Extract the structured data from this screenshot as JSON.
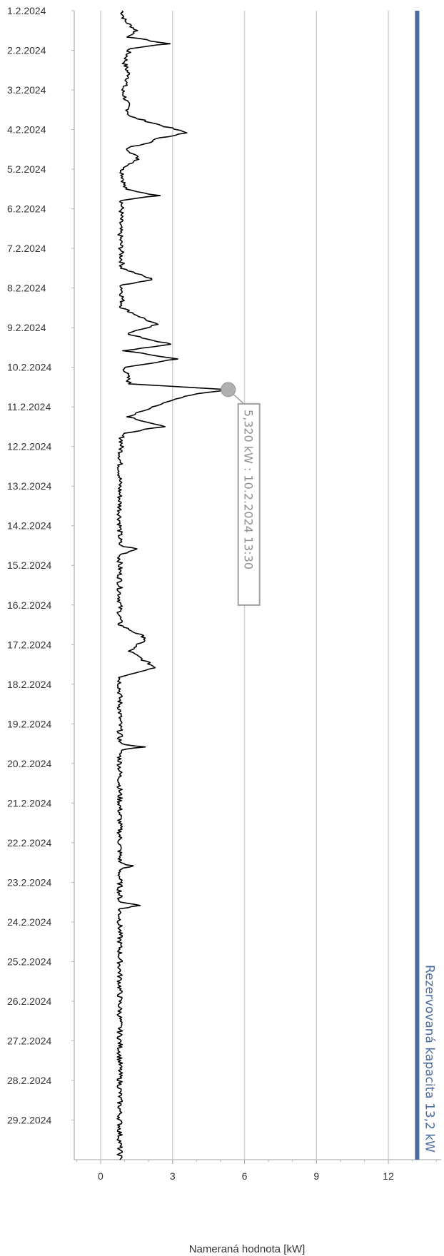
{
  "chart_data": {
    "type": "line",
    "orientation": "horizontal-time-axis-vertical",
    "title": "",
    "xlabel": "Nameraná hodnota [kW]",
    "xlim": [
      -1.1,
      14.2
    ],
    "x_ticks": [
      "0",
      "3",
      "6",
      "9",
      "12"
    ],
    "date_ticks": [
      "1.2.2024",
      "2.2.2024",
      "3.2.2024",
      "4.2.2024",
      "5.2.2024",
      "6.2.2024",
      "7.2.2024",
      "8.2.2024",
      "9.2.2024",
      "10.2.2024",
      "11.2.2024",
      "12.2.2024",
      "13.2.2024",
      "14.2.2024",
      "15.2.2024",
      "16.2.2024",
      "17.2.2024",
      "18.2.2024",
      "19.2.2024",
      "20.2.2024",
      "21.2.2024",
      "22.2.2024",
      "23.2.2024",
      "24.2.2024",
      "25.2.2024",
      "26.2.2024",
      "27.2.2024",
      "28.2.2024",
      "29.2.2024"
    ],
    "time_range": [
      "2024-02-01T00:00",
      "2024-03-01T00:00"
    ],
    "grid": "vertical",
    "series": [
      {
        "color": "#000000",
        "points": [
          [
            "2024-02-01T00:00",
            0.9
          ],
          [
            "2024-02-01T06:00",
            1.0
          ],
          [
            "2024-02-01T12:00",
            1.5
          ],
          [
            "2024-02-01T16:00",
            1.2
          ],
          [
            "2024-02-01T20:00",
            2.8
          ],
          [
            "2024-02-01T23:00",
            1.2
          ],
          [
            "2024-02-02T08:00",
            1.0
          ],
          [
            "2024-02-02T16:00",
            1.2
          ],
          [
            "2024-02-03T00:00",
            0.9
          ],
          [
            "2024-02-03T08:00",
            1.1
          ],
          [
            "2024-02-03T16:00",
            1.2
          ],
          [
            "2024-02-03T23:00",
            2.9
          ],
          [
            "2024-02-04T02:00",
            3.6
          ],
          [
            "2024-02-04T05:00",
            2.5
          ],
          [
            "2024-02-04T08:00",
            2.0
          ],
          [
            "2024-02-04T11:00",
            1.1
          ],
          [
            "2024-02-04T18:00",
            1.6
          ],
          [
            "2024-02-05T00:00",
            0.9
          ],
          [
            "2024-02-05T12:00",
            1.0
          ],
          [
            "2024-02-05T16:00",
            2.4
          ],
          [
            "2024-02-05T19:00",
            0.9
          ],
          [
            "2024-02-06T12:00",
            0.8
          ],
          [
            "2024-02-07T12:00",
            0.9
          ],
          [
            "2024-02-07T19:00",
            2.2
          ],
          [
            "2024-02-07T22:00",
            0.9
          ],
          [
            "2024-02-08T12:00",
            0.9
          ],
          [
            "2024-02-08T22:00",
            2.3
          ],
          [
            "2024-02-09T04:00",
            1.1
          ],
          [
            "2024-02-09T10:00",
            2.9
          ],
          [
            "2024-02-09T14:00",
            1.0
          ],
          [
            "2024-02-09T19:00",
            3.2
          ],
          [
            "2024-02-10T00:00",
            1.0
          ],
          [
            "2024-02-10T10:00",
            1.2
          ],
          [
            "2024-02-10T13:30",
            5.32
          ],
          [
            "2024-02-10T16:00",
            4.0
          ],
          [
            "2024-02-10T20:00",
            3.0
          ],
          [
            "2024-02-11T00:00",
            2.2
          ],
          [
            "2024-02-11T06:00",
            1.2
          ],
          [
            "2024-02-11T12:00",
            2.6
          ],
          [
            "2024-02-11T16:00",
            0.9
          ],
          [
            "2024-02-12T12:00",
            0.8
          ],
          [
            "2024-02-13T12:00",
            0.8
          ],
          [
            "2024-02-14T12:00",
            0.8
          ],
          [
            "2024-02-14T14:00",
            1.5
          ],
          [
            "2024-02-14T18:00",
            0.8
          ],
          [
            "2024-02-15T12:00",
            0.8
          ],
          [
            "2024-02-16T12:00",
            0.8
          ],
          [
            "2024-02-16T20:00",
            1.9
          ],
          [
            "2024-02-17T04:00",
            1.2
          ],
          [
            "2024-02-17T14:00",
            2.3
          ],
          [
            "2024-02-17T20:00",
            0.8
          ],
          [
            "2024-02-18T12:00",
            0.8
          ],
          [
            "2024-02-19T12:00",
            0.8
          ],
          [
            "2024-02-19T14:00",
            1.8
          ],
          [
            "2024-02-19T16:00",
            0.8
          ],
          [
            "2024-02-20T12:00",
            0.8
          ],
          [
            "2024-02-21T12:00",
            0.8
          ],
          [
            "2024-02-22T12:00",
            0.8
          ],
          [
            "2024-02-22T14:00",
            1.3
          ],
          [
            "2024-02-22T16:00",
            0.8
          ],
          [
            "2024-02-23T12:00",
            0.8
          ],
          [
            "2024-02-23T14:00",
            1.7
          ],
          [
            "2024-02-23T16:00",
            0.8
          ],
          [
            "2024-02-24T12:00",
            0.8
          ],
          [
            "2024-02-25T12:00",
            0.8
          ],
          [
            "2024-02-26T12:00",
            0.8
          ],
          [
            "2024-02-27T12:00",
            0.8
          ],
          [
            "2024-02-28T12:00",
            0.8
          ],
          [
            "2024-02-29T23:59",
            0.8
          ]
        ]
      }
    ],
    "capacity_line": {
      "value": 13.2,
      "label": "Rezervovaná kapacita 13,2 kW",
      "color": "#4a6aa0"
    },
    "tooltip": {
      "value": 5.32,
      "time": "2024-02-10T13:30",
      "text": "5,320 kW : 10.2.2024 13:30"
    }
  }
}
